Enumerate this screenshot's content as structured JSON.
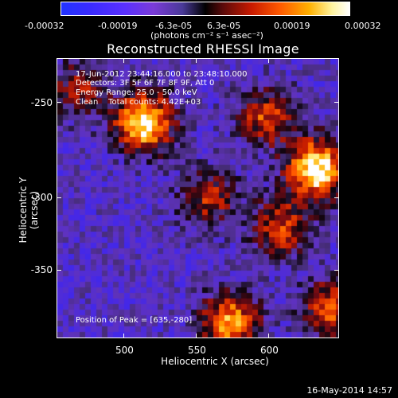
{
  "colorbar": {
    "ticks": [
      "-0.00032",
      "-0.00019",
      "-6.3e-05",
      "6.3e-05",
      "0.00019",
      "0.00032"
    ],
    "unit": "(photons cm⁻² s⁻¹ asec⁻²)",
    "range": [
      -0.00032,
      0.00032
    ]
  },
  "chart_data": {
    "type": "heatmap",
    "title": "Reconstructed RHESSI Image",
    "xlabel": "Heliocentric X (arcsec)",
    "ylabel": "Heliocentric Y (arcsec)",
    "xlim": [
      455,
      650
    ],
    "ylim": [
      -395,
      -205
    ],
    "xticks": [
      "500",
      "550",
      "600"
    ],
    "yticks": [
      "-250",
      "-300",
      "-350"
    ],
    "annotations": {
      "time": "17-Jun-2012 23:44:16.000 to 23:48:10.000",
      "detectors": "Detectors: 3F 5F 6F 7F 8F 9F, Att 0",
      "energy": "Energy Range: 25.0 - 50.0 keV",
      "clean": "Clean    Total counts: 4.42E+03",
      "peak": "Position of Peak = [635,-280]"
    },
    "sources": [
      {
        "x": 635,
        "y": -280,
        "intensity": 1.0
      },
      {
        "x": 515,
        "y": -248,
        "intensity": 0.95
      },
      {
        "x": 600,
        "y": -245,
        "intensity": 0.55
      },
      {
        "x": 610,
        "y": -320,
        "intensity": 0.55
      },
      {
        "x": 575,
        "y": -385,
        "intensity": 0.75
      },
      {
        "x": 645,
        "y": -375,
        "intensity": 0.6
      },
      {
        "x": 560,
        "y": -300,
        "intensity": 0.45
      },
      {
        "x": 470,
        "y": -225,
        "intensity": 0.4
      }
    ]
  },
  "footer": {
    "date": "16-May-2014 14:57"
  }
}
